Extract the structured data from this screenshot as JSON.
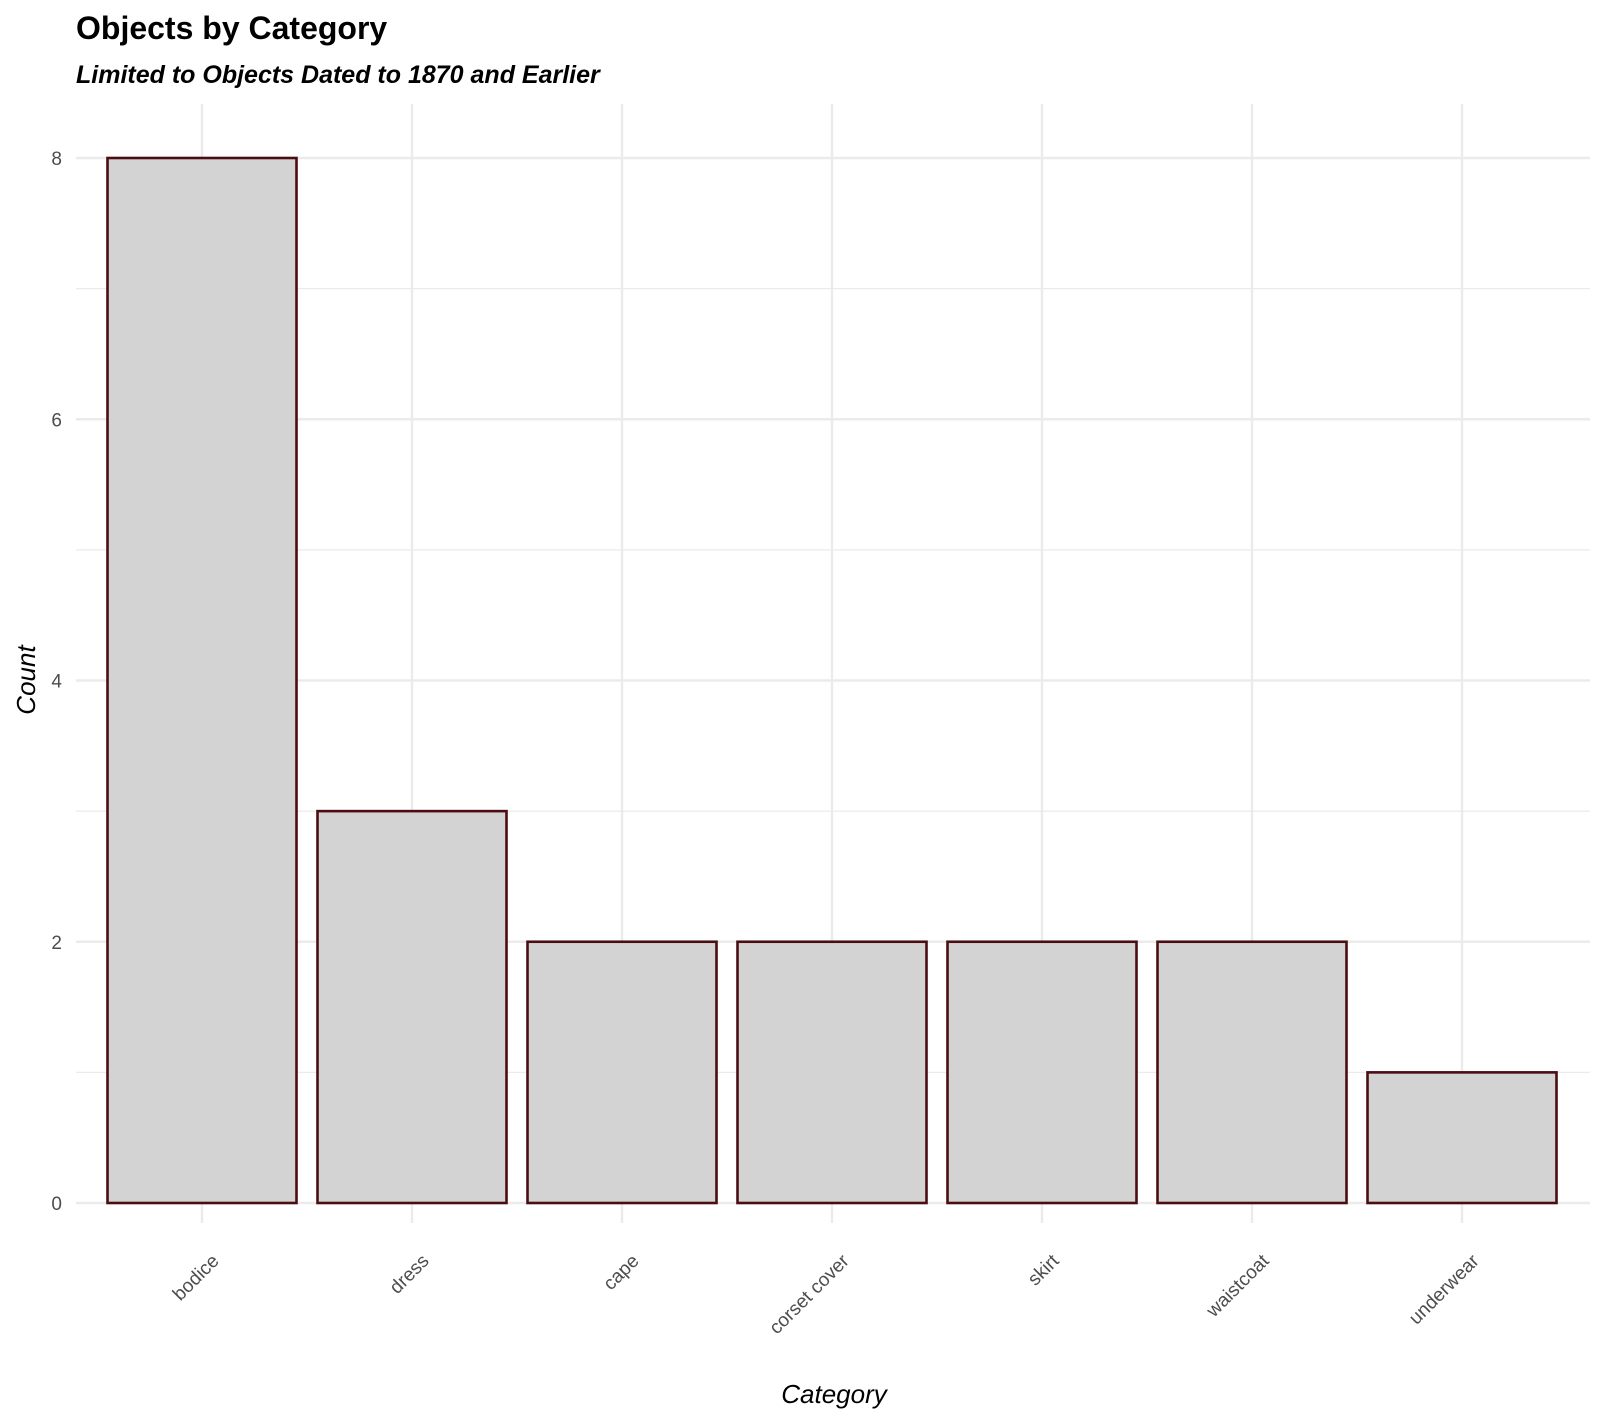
{
  "chart_data": {
    "type": "bar",
    "title": "Objects by Category",
    "subtitle": "Limited to Objects Dated to 1870 and Earlier",
    "xlabel": "Category",
    "ylabel": "Count",
    "categories": [
      "bodice",
      "dress",
      "cape",
      "corset cover",
      "skirt",
      "waistcoat",
      "underwear"
    ],
    "values": [
      8,
      3,
      2,
      2,
      2,
      2,
      1
    ],
    "ylim": [
      0,
      8.4
    ],
    "yticks": [
      0,
      2,
      4,
      6,
      8
    ],
    "grid": true,
    "legend": "none",
    "colors": {
      "bar_fill": "#d3d3d3",
      "bar_stroke": "#4a0e12",
      "grid": "#ebebeb"
    }
  }
}
